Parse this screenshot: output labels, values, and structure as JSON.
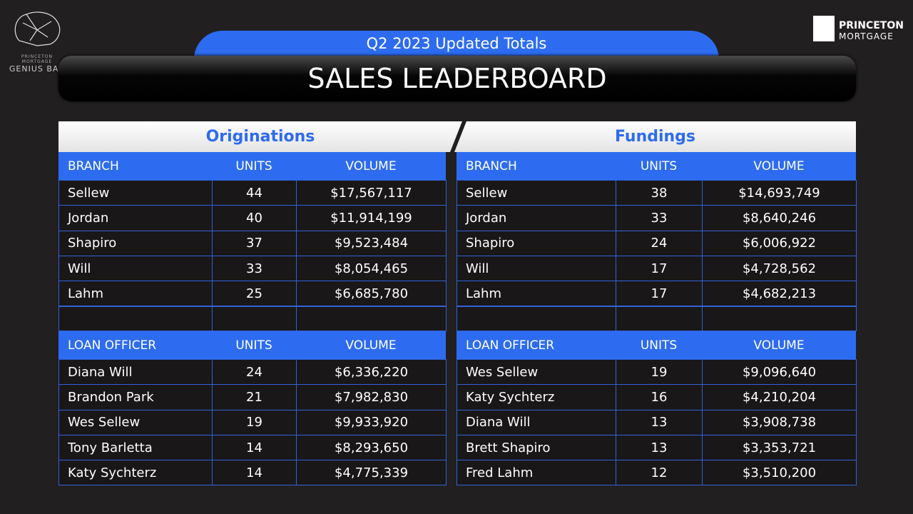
{
  "logo_left": {
    "line1": "PRINCETON MORTGAGE",
    "line2": "GENIUS BAR"
  },
  "logo_right": {
    "line1": "PRINCETON",
    "line2": "MORTGAGE"
  },
  "banner": {
    "subtitle": "Q2 2023 Updated Totals",
    "title": "SALES LEADERBOARD"
  },
  "panels": [
    {
      "title": "Originations",
      "sections": [
        {
          "header": [
            "BRANCH",
            "UNITS",
            "VOLUME"
          ],
          "rows": [
            [
              "Sellew",
              "44",
              "$17,567,117"
            ],
            [
              "Jordan",
              "40",
              "$11,914,199"
            ],
            [
              "Shapiro",
              "37",
              "$9,523,484"
            ],
            [
              "Will",
              "33",
              "$8,054,465"
            ],
            [
              "Lahm",
              "25",
              "$6,685,780"
            ]
          ]
        },
        {
          "header": [
            "LOAN OFFICER",
            "UNITS",
            "VOLUME"
          ],
          "rows": [
            [
              "Diana Will",
              "24",
              "$6,336,220"
            ],
            [
              "Brandon Park",
              "21",
              "$7,982,830"
            ],
            [
              "Wes Sellew",
              "19",
              "$9,933,920"
            ],
            [
              "Tony Barletta",
              "14",
              "$8,293,650"
            ],
            [
              "Katy Sychterz",
              "14",
              "$4,775,339"
            ]
          ]
        }
      ]
    },
    {
      "title": "Fundings",
      "sections": [
        {
          "header": [
            "BRANCH",
            "UNITS",
            "VOLUME"
          ],
          "rows": [
            [
              "Sellew",
              "38",
              "$14,693,749"
            ],
            [
              "Jordan",
              "33",
              "$8,640,246"
            ],
            [
              "Shapiro",
              "24",
              "$6,006,922"
            ],
            [
              "Will",
              "17",
              "$4,728,562"
            ],
            [
              "Lahm",
              "17",
              "$4,682,213"
            ]
          ]
        },
        {
          "header": [
            "LOAN OFFICER",
            "UNITS",
            "VOLUME"
          ],
          "rows": [
            [
              "Wes Sellew",
              "19",
              "$9,096,640"
            ],
            [
              "Katy Sychterz",
              "16",
              "$4,210,204"
            ],
            [
              "Diana Will",
              "13",
              "$3,908,738"
            ],
            [
              "Brett Shapiro",
              "13",
              "$3,353,721"
            ],
            [
              "Fred Lahm",
              "12",
              "$3,510,200"
            ]
          ]
        }
      ]
    }
  ]
}
